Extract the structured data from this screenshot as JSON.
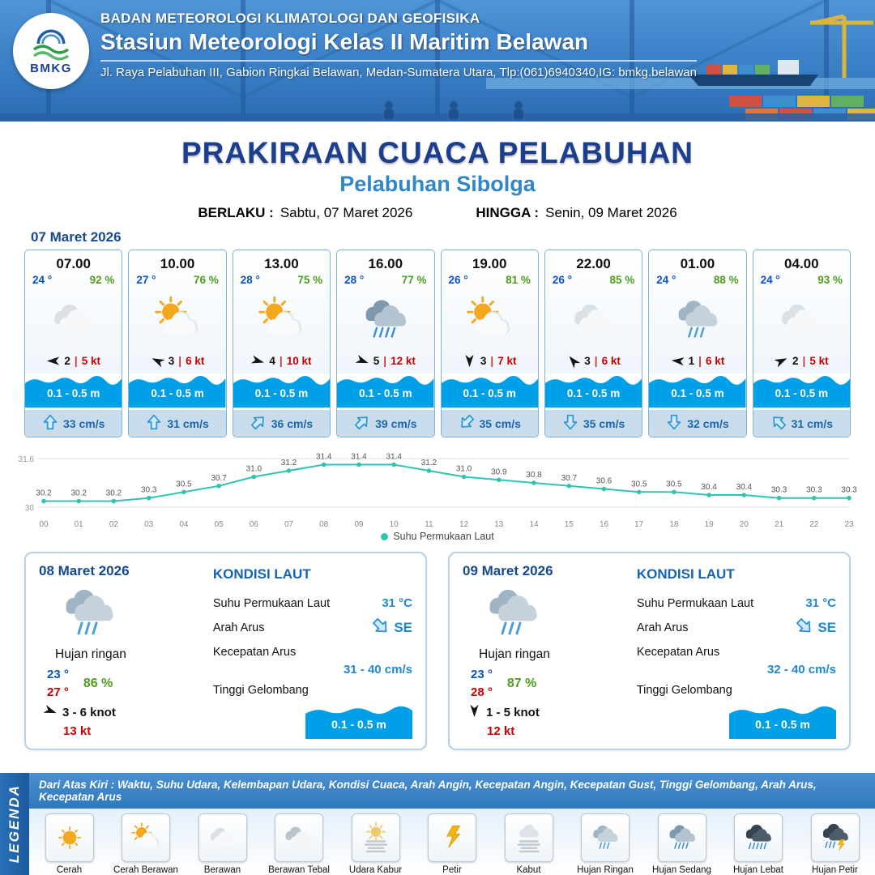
{
  "header": {
    "logo_text": "BMKG",
    "org": "BADAN METEOROLOGI KLIMATOLOGI DAN GEOFISIKA",
    "station": "Stasiun Meteorologi Kelas II Maritim Belawan",
    "address": "Jl. Raya Pelabuhan III, Gabion Ringkai Belawan, Medan-Sumatera Utara, Tlp:(061)6940340,IG: bmkg.belawan"
  },
  "title": {
    "main": "PRAKIRAAN CUACA PELABUHAN",
    "sub": "Pelabuhan Sibolga",
    "berlaku_label": "BERLAKU :",
    "berlaku_value": "Sabtu, 07 Maret 2026",
    "hingga_label": "HINGGA :",
    "hingga_value": "Senin, 09 Maret 2026"
  },
  "day1": {
    "date": "07 Maret 2026",
    "cards": [
      {
        "time": "07.00",
        "temp": "24 °",
        "rh": "92 %",
        "icon": "berawan",
        "wind_deg": 180,
        "wind_speed": "2",
        "gust": "5 kt",
        "wave": "0.1 - 0.5 m",
        "current": "33 cm/s",
        "current_deg": 0
      },
      {
        "time": "10.00",
        "temp": "27 °",
        "rh": "76 %",
        "icon": "cerah-berawan",
        "wind_deg": 205,
        "wind_speed": "3",
        "gust": "6 kt",
        "wave": "0.1 - 0.5 m",
        "current": "31 cm/s",
        "current_deg": 0
      },
      {
        "time": "13.00",
        "temp": "28 °",
        "rh": "75 %",
        "icon": "cerah-berawan",
        "wind_deg": 15,
        "wind_speed": "4",
        "gust": "10 kt",
        "wave": "0.1 - 0.5 m",
        "current": "36 cm/s",
        "current_deg": 45
      },
      {
        "time": "16.00",
        "temp": "28 °",
        "rh": "77 %",
        "icon": "hujan-sedang",
        "wind_deg": 20,
        "wind_speed": "5",
        "gust": "12 kt",
        "wave": "0.1 - 0.5 m",
        "current": "39 cm/s",
        "current_deg": 45
      },
      {
        "time": "19.00",
        "temp": "26 °",
        "rh": "81 %",
        "icon": "cerah-berawan",
        "wind_deg": 90,
        "wind_speed": "3",
        "gust": "7 kt",
        "wave": "0.1 - 0.5 m",
        "current": "35 cm/s",
        "current_deg": 225
      },
      {
        "time": "22.00",
        "temp": "26 °",
        "rh": "85 %",
        "icon": "berawan",
        "wind_deg": 230,
        "wind_speed": "3",
        "gust": "6 kt",
        "wave": "0.1 - 0.5 m",
        "current": "35 cm/s",
        "current_deg": 180
      },
      {
        "time": "01.00",
        "temp": "24 °",
        "rh": "88 %",
        "icon": "hujan-ringan",
        "wind_deg": 185,
        "wind_speed": "1",
        "gust": "6 kt",
        "wave": "0.1 - 0.5 m",
        "current": "32 cm/s",
        "current_deg": 180
      },
      {
        "time": "04.00",
        "temp": "24 °",
        "rh": "93 %",
        "icon": "berawan",
        "wind_deg": 335,
        "wind_speed": "2",
        "gust": "5 kt",
        "wave": "0.1 - 0.5 m",
        "current": "31 cm/s",
        "current_deg": 315
      }
    ]
  },
  "chart_data": {
    "type": "line",
    "series_label": "Suhu Permukaan Laut",
    "x": [
      "00",
      "01",
      "02",
      "03",
      "04",
      "05",
      "06",
      "07",
      "08",
      "09",
      "10",
      "11",
      "12",
      "13",
      "14",
      "15",
      "16",
      "17",
      "18",
      "19",
      "20",
      "21",
      "22",
      "23"
    ],
    "values": [
      30.2,
      30.2,
      30.2,
      30.3,
      30.5,
      30.7,
      31.0,
      31.2,
      31.4,
      31.4,
      31.4,
      31.2,
      31.0,
      30.9,
      30.8,
      30.7,
      30.6,
      30.5,
      30.5,
      30.4,
      30.4,
      30.3,
      30.3,
      30.3
    ],
    "ylim": [
      30,
      31.6
    ],
    "y_tick_labels": [
      "31.6",
      "30"
    ],
    "color": "#2ec4b0",
    "grid": true,
    "legend_position": "bottom"
  },
  "day_card_labels": {
    "kondisi": "KONDISI LAUT",
    "sst": "Suhu Permukaan Laut",
    "arah": "Arah Arus",
    "kecepatan": "Kecepatan Arus",
    "gelombang": "Tinggi Gelombang"
  },
  "day_cards": [
    {
      "date": "08 Maret 2026",
      "icon": "hujan-ringan",
      "condition": "Hujan ringan",
      "temp_min": "23 °",
      "temp_max": "27 °",
      "rh": "86 %",
      "wind_deg": 20,
      "wind": "3  - 6 knot",
      "gust": "13 kt",
      "sst": "31 °C",
      "current_dir": "SE",
      "current_dir_deg": 135,
      "current_speed": "31  - 40 cm/s",
      "wave": "0.1 - 0.5 m"
    },
    {
      "date": "09 Maret 2026",
      "icon": "hujan-ringan",
      "condition": "Hujan ringan",
      "temp_min": "23 °",
      "temp_max": "28 °",
      "rh": "87 %",
      "wind_deg": 90,
      "wind": "1  - 5 knot",
      "gust": "12 kt",
      "sst": "31 °C",
      "current_dir": "SE",
      "current_dir_deg": 135,
      "current_speed": "32  - 40 cm/s",
      "wave": "0.1 - 0.5 m"
    }
  ],
  "legend": {
    "title": "LEGENDA",
    "description": "Dari Atas Kiri : Waktu, Suhu Udara, Kelembapan Udara, Kondisi Cuaca, Arah Angin, Kecepatan Angin, Kecepatan Gust, Tinggi Gelombang, Arah Arus, Kecepatan Arus",
    "items": [
      {
        "label": "Cerah",
        "icon": "cerah"
      },
      {
        "label": "Cerah Berawan",
        "icon": "cerah-berawan"
      },
      {
        "label": "Berawan",
        "icon": "berawan"
      },
      {
        "label": "Berawan Tebal",
        "icon": "berawan-tebal"
      },
      {
        "label": "Udara Kabur",
        "icon": "udara-kabur"
      },
      {
        "label": "Petir",
        "icon": "petir"
      },
      {
        "label": "Kabut",
        "icon": "kabut"
      },
      {
        "label": "Hujan Ringan",
        "icon": "hujan-ringan"
      },
      {
        "label": "Hujan Sedang",
        "icon": "hujan-sedang"
      },
      {
        "label": "Hujan Lebat",
        "icon": "hujan-lebat"
      },
      {
        "label": "Hujan Petir",
        "icon": "hujan-petir"
      }
    ]
  }
}
